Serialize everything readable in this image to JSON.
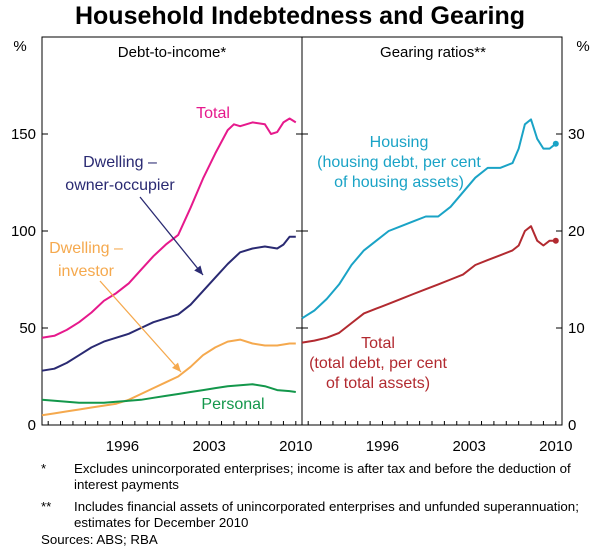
{
  "title": "Household Indebtedness and Gearing",
  "colors": {
    "total": "#e6198c",
    "owner": "#2a2a72",
    "investor": "#f5a94e",
    "personal": "#13974b",
    "housing": "#1aa3c6",
    "gearing_total": "#b22a30"
  },
  "chart_data": [
    {
      "type": "line",
      "title": "Debt-to-income*",
      "unit_label": "%",
      "ylim": [
        0,
        200
      ],
      "yticks": [
        "0",
        "50",
        "100",
        "150"
      ],
      "xlim": [
        1990,
        2011
      ],
      "xticks": [
        "1996",
        "2003",
        "2010"
      ],
      "labels": {
        "total": "Total",
        "owner": [
          "Dwelling –",
          "owner-occupier"
        ],
        "investor": [
          "Dwelling –",
          "investor"
        ],
        "personal": "Personal"
      },
      "series": [
        {
          "name": "Total",
          "key": "total",
          "x": [
            1990,
            1991,
            1992,
            1993,
            1994,
            1995,
            1996,
            1997,
            1998,
            1999,
            2000,
            2001,
            2002,
            2003,
            2004,
            2005,
            2005.5,
            2006,
            2007,
            2008,
            2008.5,
            2009,
            2009.5,
            2010,
            2010.5
          ],
          "y": [
            45,
            46,
            49,
            53,
            58,
            64,
            68,
            73,
            80,
            87,
            93,
            98,
            112,
            127,
            140,
            152,
            155,
            154,
            156,
            155,
            150,
            151,
            156,
            158,
            156
          ]
        },
        {
          "name": "Dwelling – owner-occupier",
          "key": "owner",
          "x": [
            1990,
            1991,
            1992,
            1993,
            1994,
            1995,
            1996,
            1997,
            1998,
            1999,
            2000,
            2001,
            2002,
            2003,
            2004,
            2005,
            2006,
            2007,
            2008,
            2009,
            2009.5,
            2010,
            2010.5
          ],
          "y": [
            28,
            29,
            32,
            36,
            40,
            43,
            45,
            47,
            50,
            53,
            55,
            57,
            62,
            69,
            76,
            83,
            89,
            91,
            92,
            91,
            93,
            97,
            97
          ]
        },
        {
          "name": "Dwelling – investor",
          "key": "investor",
          "x": [
            1990,
            1991,
            1992,
            1993,
            1994,
            1995,
            1996,
            1997,
            1998,
            1999,
            2000,
            2001,
            2002,
            2003,
            2004,
            2005,
            2006,
            2007,
            2008,
            2009,
            2010,
            2010.5
          ],
          "y": [
            5,
            6,
            7,
            8,
            9,
            10,
            11,
            13,
            16,
            19,
            22,
            25,
            30,
            36,
            40,
            43,
            44,
            42,
            41,
            41,
            42,
            42
          ]
        },
        {
          "name": "Personal",
          "key": "personal",
          "x": [
            1990,
            1991,
            1992,
            1993,
            1994,
            1995,
            1996,
            1997,
            1998,
            1999,
            2000,
            2001,
            2002,
            2003,
            2004,
            2005,
            2006,
            2007,
            2008,
            2009,
            2010,
            2010.5
          ],
          "y": [
            13,
            12.5,
            12,
            11.5,
            11.5,
            11.5,
            12,
            12.5,
            13,
            14,
            15,
            16,
            17,
            18,
            19,
            20,
            20.5,
            21,
            20,
            18,
            17.5,
            17
          ]
        }
      ]
    },
    {
      "type": "line",
      "title": "Gearing ratios**",
      "unit_label": "%",
      "ylim": [
        0,
        40
      ],
      "yticks": [
        "0",
        "10",
        "20",
        "30"
      ],
      "xlim": [
        1990,
        2011
      ],
      "xticks": [
        "1996",
        "2003",
        "2010"
      ],
      "labels": {
        "housing": [
          "Housing",
          "(housing debt, per cent",
          "of housing assets)"
        ],
        "gearing_total": [
          "Total",
          "(total debt, per cent",
          "of total assets)"
        ]
      },
      "series": [
        {
          "name": "Housing",
          "key": "housing",
          "x": [
            1990,
            1991,
            1992,
            1993,
            1994,
            1995,
            1996,
            1997,
            1998,
            1999,
            2000,
            2001,
            2002,
            2003,
            2004,
            2005,
            2006,
            2007,
            2007.5,
            2008,
            2008.5,
            2009,
            2009.5,
            2010,
            2010.5
          ],
          "y": [
            11,
            11.8,
            13,
            14.5,
            16.5,
            18,
            19,
            20,
            20.5,
            21,
            21.5,
            21.5,
            22.5,
            24,
            25.5,
            26.5,
            26.5,
            27,
            28.5,
            31,
            31.5,
            29.5,
            28.5,
            28.5,
            29
          ],
          "end_marker": true
        },
        {
          "name": "Total",
          "key": "gearing_total",
          "x": [
            1990,
            1991,
            1992,
            1993,
            1994,
            1995,
            1996,
            1997,
            1998,
            1999,
            2000,
            2001,
            2002,
            2003,
            2004,
            2005,
            2006,
            2007,
            2007.5,
            2008,
            2008.5,
            2009,
            2009.5,
            2010,
            2010.5
          ],
          "y": [
            8.5,
            8.7,
            9,
            9.5,
            10.5,
            11.5,
            12,
            12.5,
            13,
            13.5,
            14,
            14.5,
            15,
            15.5,
            16.5,
            17,
            17.5,
            18,
            18.5,
            20,
            20.5,
            19,
            18.5,
            19,
            19
          ],
          "end_marker": true
        }
      ]
    }
  ],
  "footnotes": [
    {
      "mark": "*",
      "text": "Excludes unincorporated enterprises; income is after tax and before the deduction of interest payments"
    },
    {
      "mark": "**",
      "text": "Includes financial assets of unincorporated enterprises and unfunded superannuation; estimates for December 2010"
    }
  ],
  "sources": "Sources: ABS; RBA"
}
